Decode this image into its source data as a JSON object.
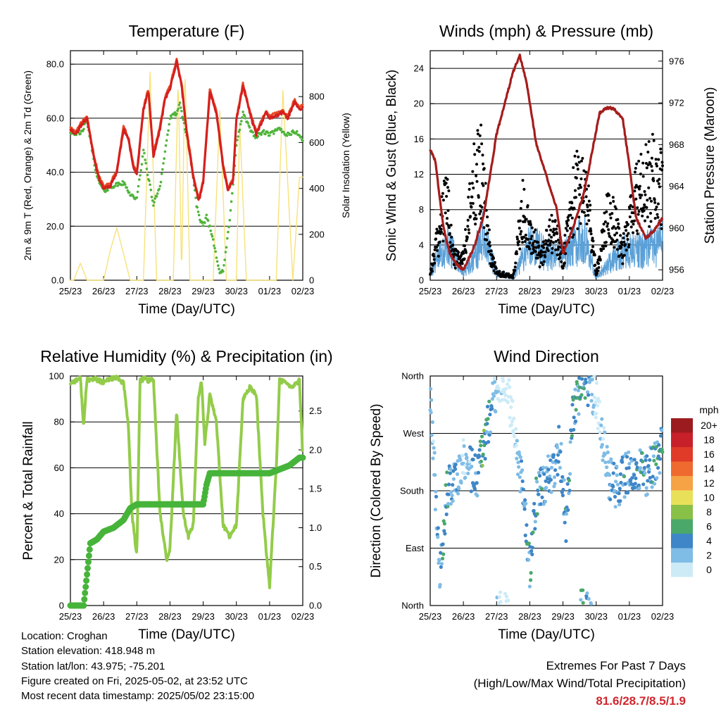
{
  "x_tick_labels": [
    "25/23",
    "26/23",
    "27/23",
    "28/23",
    "29/23",
    "30/23",
    "01/23",
    "02/23"
  ],
  "x_axis_label": "Time (Day/UTC)",
  "colors": {
    "temp_9m": "#e34b25",
    "temp_2m": "#d51f1f",
    "dewpoint": "#4fb43a",
    "insolation": "#f7e27a",
    "wind": "#5aa0d8",
    "gust": "#000000",
    "pressure": "#a51d1d",
    "rh": "#93cc4a",
    "precip": "#46b43a",
    "extremes_values": "#d0262d"
  },
  "temperature_panel": {
    "title": "Temperature (F)",
    "left_label": "2m & 9m T (Red, Orange) & 2m Td (Green)",
    "right_label": "Solar Insolation (Yellow)",
    "left_ticks": [
      "0.0",
      "20.0",
      "40.0",
      "60.0",
      "80.0"
    ],
    "right_ticks": [
      "0",
      "200",
      "400",
      "600",
      "800"
    ]
  },
  "wind_panel": {
    "title": "Winds (mph) & Pressure (mb)",
    "left_label": "Sonic Wind & Gust (Blue, Black)",
    "right_label": "Station Pressure (Maroon)",
    "left_ticks": [
      "0",
      "4",
      "8",
      "12",
      "16",
      "20",
      "24"
    ],
    "right_ticks": [
      "956",
      "960",
      "964",
      "968",
      "972",
      "976"
    ]
  },
  "rh_panel": {
    "title": "Relative Humidity (%) & Precipitation (in)",
    "left_label": "Percent & Total Rainfall",
    "left_ticks": [
      "0",
      "20",
      "40",
      "60",
      "80",
      "100"
    ],
    "right_ticks": [
      "0.0",
      "0.5",
      "1.0",
      "1.5",
      "2.0",
      "2.5"
    ]
  },
  "direction_panel": {
    "title": "Wind Direction",
    "left_label": "Direction (Colored By Speed)",
    "left_ticks": [
      "North",
      "East",
      "South",
      "West",
      "North"
    ],
    "legend_title": "mph",
    "legend_labels": [
      "0",
      "2",
      "4",
      "6",
      "8",
      "10",
      "12",
      "14",
      "16",
      "18",
      "20+"
    ],
    "legend_colors": [
      "#cdebf7",
      "#7fbce6",
      "#3e86c7",
      "#4aa86a",
      "#89c047",
      "#e9e05a",
      "#f6a345",
      "#ef6a2f",
      "#e03a28",
      "#c8202a",
      "#9b1b1f"
    ]
  },
  "info": {
    "location": "Location: Croghan",
    "elevation": "Station elevation: 418.948 m",
    "latlon": "Station lat/lon: 43.975; -75.201",
    "created": "Figure created on Fri, 2025-05-02, at 23:52 UTC",
    "recent": "Most recent data timestamp: 2025/05/02 23:15:00"
  },
  "extremes": {
    "line1": "Extremes For Past 7 Days",
    "line2": "(High/Low/Max Wind/Total Precipitation)",
    "values": "81.6/28.7/8.5/1.9"
  },
  "chart_data": [
    {
      "type": "line",
      "title": "Temperature (F)",
      "xlabel": "Time (Day/UTC)",
      "ylabel": "2m & 9m T (Red, Orange) & 2m Td (Green)",
      "y2label": "Solar Insolation (Yellow)",
      "ylim": [
        0,
        85
      ],
      "y2lim": [
        0,
        1000
      ],
      "grid": true,
      "series": [
        {
          "axis": "left",
          "x": [
            0,
            0.15,
            0.3,
            0.5,
            0.7,
            0.85,
            1.0,
            1.2,
            1.4,
            1.6,
            1.75,
            1.9,
            2.0,
            2.2,
            2.35,
            2.5,
            2.7,
            2.85,
            3.0,
            3.2,
            3.35,
            3.5,
            3.7,
            3.85,
            3.9,
            4.0,
            4.2,
            4.4,
            4.6,
            4.75,
            4.9,
            5.0,
            5.2,
            5.4,
            5.6,
            5.75,
            5.9,
            6.0,
            6.2,
            6.4,
            6.55,
            6.75,
            6.9,
            7.0
          ],
          "values": [
            56,
            54,
            57,
            60,
            46,
            38,
            34,
            35,
            40,
            56,
            52,
            42,
            39,
            63,
            70,
            46,
            56,
            67,
            71,
            81,
            72,
            55,
            38,
            30,
            31,
            36,
            70,
            62,
            42,
            33,
            37,
            59,
            72,
            62,
            54,
            58,
            62,
            60,
            61,
            62,
            60,
            66,
            63,
            64
          ]
        },
        {
          "axis": "left",
          "x": [
            0,
            0.3,
            0.5,
            0.8,
            1.0,
            1.3,
            1.6,
            1.8,
            2.0,
            2.2,
            2.5,
            2.7,
            3.0,
            3.2,
            3.3,
            3.6,
            3.8,
            3.9,
            4.0,
            4.1,
            4.3,
            4.5,
            4.6,
            4.8,
            5.0,
            5.2,
            5.4,
            5.6,
            5.8,
            6.0,
            6.3,
            6.5,
            6.8,
            7.0
          ],
          "values": [
            55,
            54,
            59,
            38,
            33,
            35,
            36,
            32,
            30,
            48,
            28,
            35,
            60,
            62,
            65,
            48,
            28,
            22,
            20,
            24,
            15,
            3,
            3,
            22,
            50,
            62,
            56,
            53,
            55,
            54,
            56,
            54,
            55,
            52
          ]
        },
        {
          "axis": "right",
          "x": [
            0.1,
            0.3,
            0.5,
            1.0,
            1.2,
            1.4,
            1.8,
            2.2,
            2.4,
            2.6,
            3.1,
            3.25,
            3.35,
            3.45,
            3.6,
            3.9,
            4.3,
            4.5,
            4.7,
            5.0,
            5.1,
            5.3,
            5.6,
            6.2,
            6.4,
            6.7,
            6.9
          ],
          "values": [
            0,
            90,
            0,
            0,
            150,
            260,
            0,
            0,
            980,
            0,
            0,
            920,
            0,
            960,
            0,
            0,
            0,
            950,
            0,
            0,
            850,
            0,
            0,
            0,
            950,
            0,
            500
          ]
        }
      ]
    },
    {
      "type": "scatter",
      "title": "Winds (mph) & Pressure (mb)",
      "xlabel": "Time (Day/UTC)",
      "ylabel": "Sonic Wind & Gust (Blue, Black)",
      "y2label": "Station Pressure (Maroon)",
      "ylim": [
        0,
        26
      ],
      "y2lim": [
        955,
        977
      ],
      "grid": true,
      "series": [
        {
          "name": "gust",
          "x": [
            0,
            0.5,
            0.7,
            1.0,
            1.3,
            1.5,
            1.8,
            2.0,
            2.5,
            2.8,
            3.3,
            3.7,
            4.0,
            4.4,
            4.7,
            5.0,
            5.4,
            5.8,
            6.2,
            6.7,
            7.0
          ],
          "values": [
            1,
            11,
            3,
            3,
            13,
            16,
            4,
            1,
            0.5,
            10,
            3,
            7,
            3,
            13,
            12,
            1,
            10,
            4,
            11,
            14,
            12
          ]
        },
        {
          "name": "wind",
          "x": [
            0,
            0.5,
            1.0,
            1.3,
            1.6,
            2.0,
            2.5,
            3.0,
            3.3,
            3.8,
            4.2,
            4.6,
            5.0,
            5.5,
            6.0,
            6.5,
            7.0
          ],
          "values": [
            1,
            5,
            1,
            3,
            6,
            1,
            0.2,
            5,
            4,
            3,
            4,
            6,
            0.3,
            3,
            4,
            4,
            5
          ]
        },
        {
          "axis": "right",
          "name": "pressure",
          "x": [
            0,
            0.15,
            0.4,
            0.6,
            0.8,
            1.0,
            1.3,
            1.6,
            2.0,
            2.5,
            2.7,
            2.9,
            3.2,
            3.5,
            3.8,
            4.0,
            4.3,
            4.6,
            4.8,
            5.1,
            5.3,
            5.5,
            5.8,
            6.0,
            6.2,
            6.5,
            6.8,
            7.0
          ],
          "values": [
            967.5,
            966.5,
            960,
            957.5,
            956.5,
            956,
            958,
            961,
            969,
            975,
            976.5,
            974,
            968,
            965,
            962,
            957.5,
            960,
            963,
            966,
            971,
            971.5,
            971.5,
            970.5,
            966,
            961,
            959,
            960,
            961
          ]
        }
      ]
    },
    {
      "type": "line",
      "title": "Relative Humidity (%) & Precipitation (in)",
      "xlabel": "Time (Day/UTC)",
      "ylabel": "Percent & Total Rainfall",
      "ylim": [
        0,
        100
      ],
      "y2lim": [
        0,
        2.95
      ],
      "grid": true,
      "series": [
        {
          "axis": "left",
          "x": [
            0,
            0.3,
            0.4,
            0.5,
            0.6,
            0.7,
            1.0,
            1.2,
            1.4,
            1.6,
            1.75,
            1.85,
            2.0,
            2.1,
            2.25,
            2.35,
            2.5,
            2.7,
            2.9,
            3.0,
            3.2,
            3.4,
            3.55,
            3.7,
            3.85,
            3.95,
            4.05,
            4.2,
            4.4,
            4.6,
            4.8,
            5.0,
            5.2,
            5.4,
            5.6,
            5.8,
            6.0,
            6.2,
            6.3,
            6.5,
            6.7,
            6.9,
            7.0
          ],
          "values": [
            97,
            99,
            78,
            99,
            98,
            99,
            97,
            99,
            99,
            97,
            78,
            40,
            22,
            98,
            99,
            98,
            99,
            40,
            20,
            25,
            84,
            40,
            30,
            35,
            90,
            98,
            70,
            92,
            80,
            35,
            30,
            35,
            90,
            95,
            92,
            40,
            8,
            60,
            98,
            97,
            95,
            98,
            65
          ]
        },
        {
          "axis": "right",
          "x": [
            0,
            0.4,
            0.5,
            0.6,
            0.8,
            1.0,
            1.3,
            1.6,
            1.8,
            2.0,
            2.5,
            3.0,
            3.5,
            4.0,
            4.1,
            4.2,
            4.5,
            5.0,
            5.5,
            6.0,
            6.3,
            6.6,
            6.9,
            7.0
          ],
          "values": [
            0,
            0,
            0.4,
            0.8,
            0.85,
            0.95,
            1.0,
            1.1,
            1.25,
            1.3,
            1.3,
            1.3,
            1.3,
            1.3,
            1.55,
            1.7,
            1.7,
            1.7,
            1.7,
            1.7,
            1.75,
            1.8,
            1.9,
            1.9
          ]
        }
      ]
    },
    {
      "type": "scatter",
      "title": "Wind Direction",
      "xlabel": "Time (Day/UTC)",
      "ylabel": "Direction (Colored By Speed)",
      "y_categories": [
        "North",
        "East",
        "South",
        "West",
        "North"
      ],
      "ylim": [
        0,
        360
      ],
      "grid": true,
      "series": [
        {
          "name": "direction",
          "x": [
            0,
            0.3,
            0.5,
            0.8,
            1.0,
            1.2,
            1.4,
            1.6,
            1.9,
            2.1,
            2.3,
            2.5,
            2.8,
            3.0,
            3.2,
            3.5,
            3.7,
            3.9,
            4.1,
            4.3,
            4.6,
            4.8,
            5.0,
            5.2,
            5.4,
            5.6,
            5.8,
            6.0,
            6.2,
            6.5,
            6.8,
            7.0
          ],
          "values": [
            340,
            40,
            180,
            200,
            230,
            215,
            200,
            240,
            330,
            350,
            360,
            280,
            180,
            50,
            170,
            200,
            215,
            250,
            120,
            300,
            360,
            340,
            320,
            260,
            200,
            185,
            200,
            210,
            220,
            200,
            230,
            250
          ]
        }
      ]
    }
  ]
}
